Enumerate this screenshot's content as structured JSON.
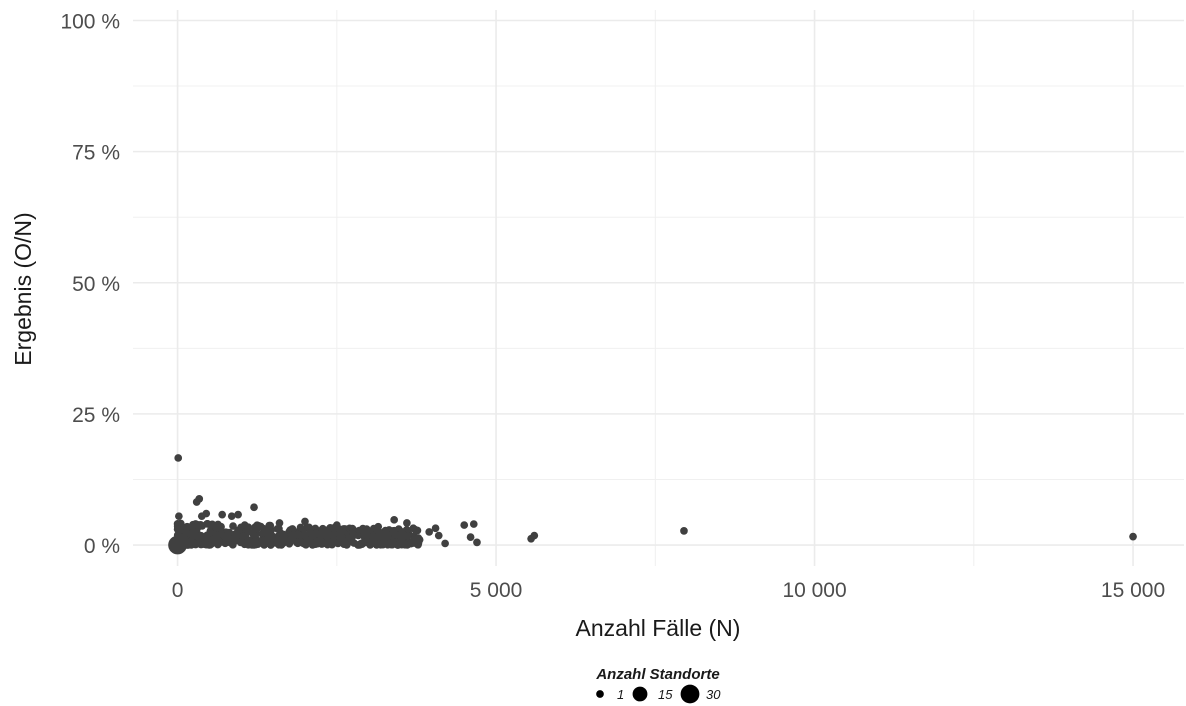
{
  "chart_data": {
    "type": "scatter",
    "xlabel": "Anzahl Fälle (N)",
    "ylabel": "Ergebnis (O/N)",
    "xlim": [
      -700,
      15800
    ],
    "ylim": [
      -4,
      102
    ],
    "x_ticks": [
      0,
      5000,
      10000,
      15000
    ],
    "x_tick_labels": [
      "0",
      "5 000",
      "10 000",
      "15 000"
    ],
    "x_minor_ticks": [
      2500,
      7500,
      12500
    ],
    "y_ticks": [
      0,
      25,
      50,
      75,
      100
    ],
    "y_tick_labels": [
      "0 %",
      "25 %",
      "50 %",
      "75 %",
      "100 %"
    ],
    "y_minor_ticks": [
      12.5,
      37.5,
      62.5,
      87.5
    ],
    "grid": true,
    "point_color": "#404040",
    "legend": {
      "title": "Anzahl Standorte",
      "position": "bottom",
      "entries": [
        {
          "label": "1",
          "size": 1
        },
        {
          "label": "15",
          "size": 15
        },
        {
          "label": "30",
          "size": 30
        }
      ]
    },
    "points": [
      {
        "x": 0,
        "y": 0,
        "size": 30
      },
      {
        "x": 10,
        "y": 16.6,
        "size": 1
      },
      {
        "x": 20,
        "y": 5.5,
        "size": 1
      },
      {
        "x": 150,
        "y": 3.5,
        "size": 1
      },
      {
        "x": 250,
        "y": 2.5,
        "size": 1
      },
      {
        "x": 300,
        "y": 8.2,
        "size": 1
      },
      {
        "x": 340,
        "y": 8.8,
        "size": 1
      },
      {
        "x": 380,
        "y": 5.5,
        "size": 1
      },
      {
        "x": 450,
        "y": 6.0,
        "size": 1
      },
      {
        "x": 700,
        "y": 5.8,
        "size": 1
      },
      {
        "x": 850,
        "y": 5.5,
        "size": 1
      },
      {
        "x": 950,
        "y": 5.8,
        "size": 1
      },
      {
        "x": 1200,
        "y": 7.2,
        "size": 1
      },
      {
        "x": 1600,
        "y": 4.2,
        "size": 1
      },
      {
        "x": 2000,
        "y": 4.5,
        "size": 1
      },
      {
        "x": 2500,
        "y": 3.8,
        "size": 1
      },
      {
        "x": 2900,
        "y": 2.8,
        "size": 1
      },
      {
        "x": 3150,
        "y": 3.5,
        "size": 1
      },
      {
        "x": 3400,
        "y": 4.8,
        "size": 1
      },
      {
        "x": 3600,
        "y": 4.2,
        "size": 1
      },
      {
        "x": 3700,
        "y": 3.2,
        "size": 1
      },
      {
        "x": 3800,
        "y": 1.0,
        "size": 1
      },
      {
        "x": 3950,
        "y": 2.5,
        "size": 1
      },
      {
        "x": 4050,
        "y": 3.2,
        "size": 1
      },
      {
        "x": 4100,
        "y": 1.8,
        "size": 1
      },
      {
        "x": 4200,
        "y": 0.3,
        "size": 1
      },
      {
        "x": 4500,
        "y": 3.8,
        "size": 1
      },
      {
        "x": 4600,
        "y": 1.5,
        "size": 1
      },
      {
        "x": 4650,
        "y": 4.0,
        "size": 1
      },
      {
        "x": 4700,
        "y": 0.5,
        "size": 1
      },
      {
        "x": 5550,
        "y": 1.2,
        "size": 1
      },
      {
        "x": 5600,
        "y": 1.8,
        "size": 1
      },
      {
        "x": 7950,
        "y": 2.7,
        "size": 1
      },
      {
        "x": 15000,
        "y": 1.6,
        "size": 1
      }
    ],
    "dense_cluster": {
      "x_range": [
        0,
        3800
      ],
      "y_range": [
        0,
        4.5
      ],
      "size": 1
    }
  }
}
